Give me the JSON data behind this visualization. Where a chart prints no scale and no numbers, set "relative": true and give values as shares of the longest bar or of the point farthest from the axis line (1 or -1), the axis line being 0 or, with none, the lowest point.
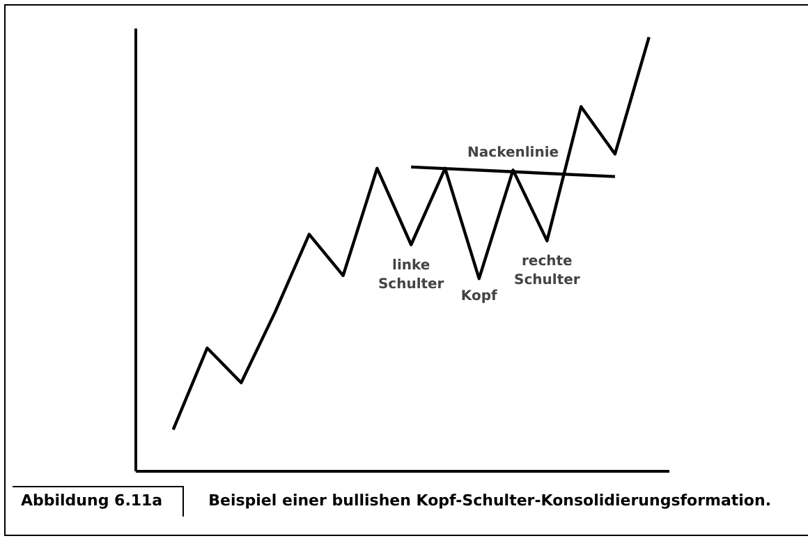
{
  "chart_data": {
    "type": "line",
    "relative": true,
    "title": "Beispiel einer bullishen Kopf-Schulter-Konsolidierungsformation.",
    "categories": [
      null,
      null,
      null,
      null,
      null,
      null,
      null,
      null,
      null,
      null,
      null,
      null,
      null,
      null,
      null
    ],
    "series": [
      {
        "color": "#000000",
        "values": [
          0.096,
          0.284,
          0.204,
          0.367,
          0.546,
          0.451,
          0.698,
          0.522,
          0.698,
          0.444,
          0.694,
          0.531,
          0.84,
          0.731,
          1
        ]
      },
      {
        "color": "#000000",
        "values": [
          null,
          null,
          null,
          null,
          null,
          null,
          null,
          0.701,
          null,
          null,
          null,
          null,
          null,
          0.679,
          null
        ]
      }
    ],
    "annotations": [
      "linke\nSchulter",
      "Kopf",
      "rechte\nSchulter",
      "Nackenlinie",
      "Abbildung 6.11a"
    ],
    "grid": false,
    "marker": "none",
    "line_style": "solid"
  }
}
